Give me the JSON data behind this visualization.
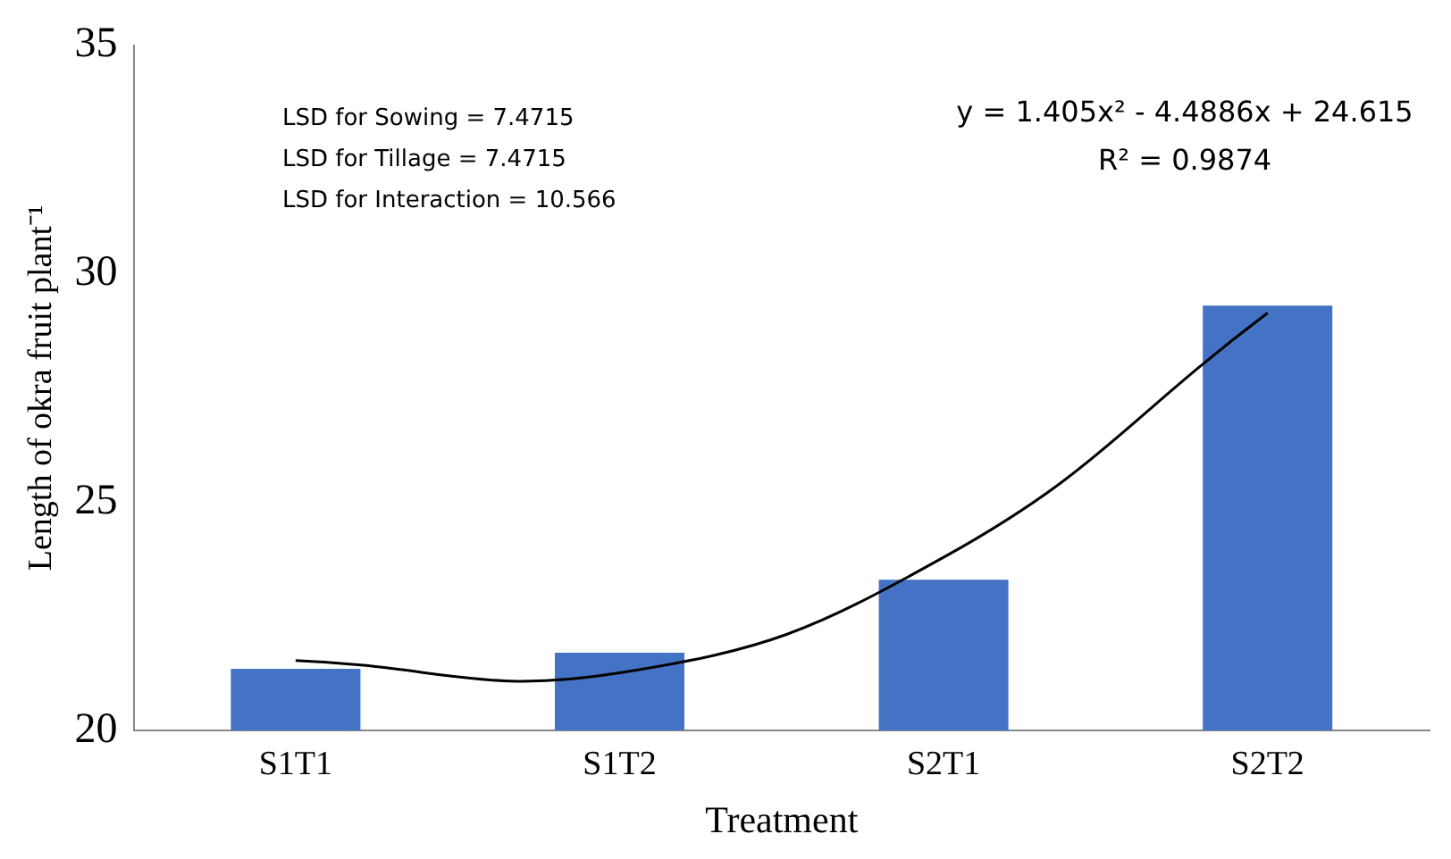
{
  "chart_data": {
    "type": "bar",
    "xlabel": "Treatment",
    "ylabel": "Length of okra fruit plant⁻¹",
    "categories": [
      "S1T1",
      "S1T2",
      "S2T1",
      "S2T2"
    ],
    "series": [
      {
        "color": "#4472c4",
        "values": [
          21.35,
          21.7,
          23.3,
          29.3
        ]
      },
      {
        "type": "line",
        "color": "#000000",
        "x": [
          "S1T1",
          "S1T2",
          "S2T1",
          "S2T2"
        ],
        "values": [
          21.53,
          21.26,
          23.79,
          29.14
        ]
      }
    ],
    "ylim": [
      20,
      35
    ],
    "yticks": [
      20,
      25,
      30,
      35
    ],
    "grid": false,
    "legend": false,
    "marker": "none",
    "line_style": "solid",
    "annotations": [
      "LSD for Sowing = 7.4715",
      "LSD for Tillage = 7.4715",
      "LSD for Interaction = 10.566",
      "y = 1.405x² - 4.4886x + 24.615",
      "R² = 0.9874"
    ]
  }
}
